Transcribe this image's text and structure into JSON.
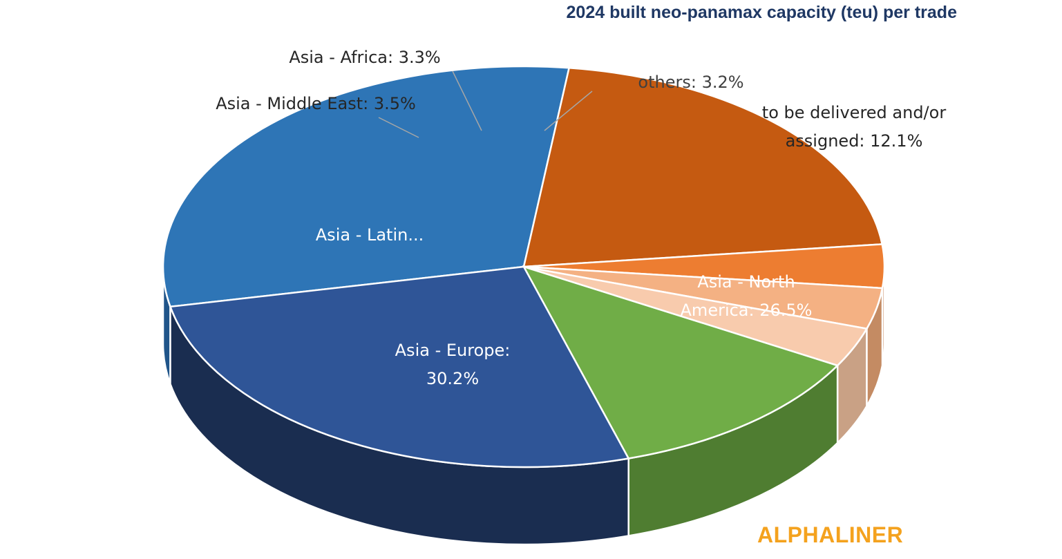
{
  "chart_data": {
    "type": "pie",
    "title": "2024 built neo-panamax capacity (teu) per trade",
    "slices": [
      {
        "label": "Asia - Europe",
        "value": 30.2,
        "display_label": [
          "Asia - Europe:",
          "30.2%"
        ],
        "color": "#2e75b6",
        "side_color": "#20558a",
        "label_color": "#ffffff"
      },
      {
        "label": "Asia - Latin America",
        "value": 21.2,
        "display_label": [
          "Asia - Latin..."
        ],
        "color": "#c55a11",
        "side_color": "#8f400b",
        "label_color": "#ffffff"
      },
      {
        "label": "Asia - Middle East",
        "value": 3.5,
        "display_label": [
          "Asia - Middle East: 3.5%"
        ],
        "color": "#ed7d31",
        "side_color": "#b35d23",
        "label_color": "#262626"
      },
      {
        "label": "Asia - Africa",
        "value": 3.3,
        "display_label": [
          "Asia - Africa: 3.3%"
        ],
        "color": "#f4b183",
        "side_color": "#c48b63",
        "label_color": "#262626"
      },
      {
        "label": "others",
        "value": 3.2,
        "display_label": [
          "others: 3.2%"
        ],
        "color": "#f8cbad",
        "side_color": "#c9a185",
        "label_color": "#404040"
      },
      {
        "label": "to be delivered and/or assigned",
        "value": 12.1,
        "display_label": [
          "to be delivered and/or",
          "assigned: 12.1%"
        ],
        "color": "#70ad47",
        "side_color": "#4f7d31",
        "label_color": "#262626"
      },
      {
        "label": "Asia - North America",
        "value": 26.5,
        "display_label": [
          "Asia - North",
          "America: 26.5%"
        ],
        "color": "#2f5597",
        "side_color": "#1a2d50",
        "label_color": "#ffffff"
      }
    ]
  },
  "brand": {
    "logo_text": "ALPHALINER",
    "logo_color": "#f4a21e"
  }
}
